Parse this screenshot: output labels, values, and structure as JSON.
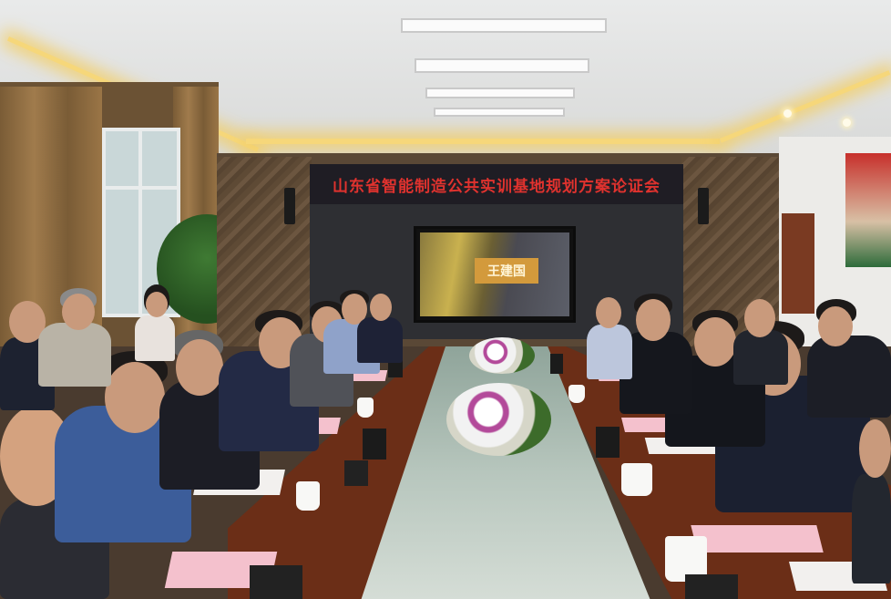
{
  "banner": {
    "text": "山东省智能制造公共实训基地规划方案论证会",
    "color": "#e0322e"
  },
  "screen": {
    "label": "王建国"
  },
  "colors": {
    "table": "#6b2e17",
    "ceiling_cove": "#f6d77a",
    "banner_background": "#1f1d24"
  }
}
